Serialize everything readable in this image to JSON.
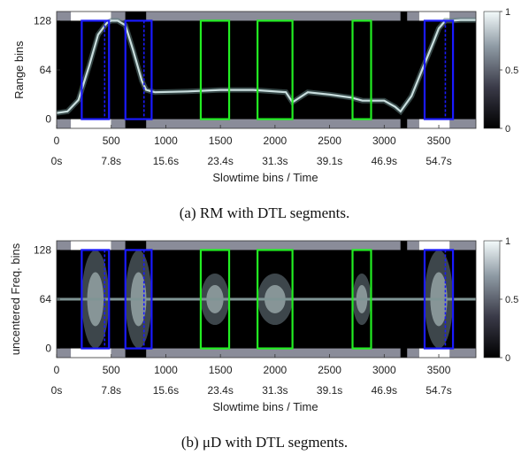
{
  "chart_data": [
    {
      "type": "heatmap",
      "caption": "(a) RM with DTL segments.",
      "xlabel": "Slowtime bins / Time",
      "ylabel": "Range bins",
      "xlim": [
        0,
        3840
      ],
      "ylim": [
        -12,
        140
      ],
      "x_ticks": [
        0,
        500,
        1000,
        1500,
        2000,
        2500,
        3000,
        3500
      ],
      "time_tick_labels": [
        "0s",
        "7.8s",
        "15.6s",
        "23.4s",
        "31.3s",
        "39.1s",
        "46.9s",
        "54.7s"
      ],
      "y_ticks": [
        0,
        64,
        128
      ],
      "colorbar": {
        "min": 0,
        "max": 1,
        "ticks": [
          0,
          0.5,
          1
        ]
      },
      "masks": [
        {
          "x0": 0,
          "x1": 130,
          "shade": "gray"
        },
        {
          "x0": 130,
          "x1": 500,
          "shade": "white"
        },
        {
          "x0": 500,
          "x1": 630,
          "shade": "gray"
        },
        {
          "x0": 630,
          "x1": 820,
          "shade": "black"
        },
        {
          "x0": 820,
          "x1": 3150,
          "shade": "gray"
        },
        {
          "x0": 3150,
          "x1": 3210,
          "shade": "black"
        },
        {
          "x0": 3210,
          "x1": 3320,
          "shade": "gray"
        },
        {
          "x0": 3320,
          "x1": 3600,
          "shade": "white"
        },
        {
          "x0": 3600,
          "x1": 3840,
          "shade": "gray"
        }
      ],
      "segments": [
        {
          "x0": 230,
          "x1": 480,
          "color": "blue",
          "dash_x": 440
        },
        {
          "x0": 630,
          "x1": 870,
          "color": "blue",
          "dash_x": 800
        },
        {
          "x0": 1320,
          "x1": 1580,
          "color": "green"
        },
        {
          "x0": 1840,
          "x1": 2160,
          "color": "green"
        },
        {
          "x0": 2710,
          "x1": 2880,
          "color": "green"
        },
        {
          "x0": 3370,
          "x1": 3630,
          "color": "blue",
          "dash_x": 3560
        }
      ],
      "trace": {
        "name": "range trace",
        "x": [
          0,
          100,
          200,
          300,
          380,
          460,
          500,
          560,
          630,
          700,
          780,
          820,
          900,
          1200,
          1500,
          1800,
          2100,
          2160,
          2300,
          2500,
          2700,
          2800,
          2900,
          3000,
          3100,
          3150,
          3250,
          3350,
          3450,
          3500,
          3560,
          3620,
          3700,
          3840
        ],
        "y": [
          8,
          10,
          25,
          70,
          110,
          125,
          128,
          128,
          122,
          90,
          50,
          38,
          35,
          36,
          38,
          38,
          35,
          22,
          35,
          32,
          28,
          24,
          24,
          24,
          16,
          10,
          30,
          65,
          100,
          118,
          128,
          128,
          129,
          129
        ]
      }
    },
    {
      "type": "heatmap",
      "caption": "(b) μD with DTL segments.",
      "xlabel": "Slowtime bins / Time",
      "ylabel": "uncentered Freq. bins",
      "xlim": [
        0,
        3840
      ],
      "ylim": [
        -12,
        140
      ],
      "x_ticks": [
        0,
        500,
        1000,
        1500,
        2000,
        2500,
        3000,
        3500
      ],
      "time_tick_labels": [
        "0s",
        "7.8s",
        "15.6s",
        "23.4s",
        "31.3s",
        "39.1s",
        "46.9s",
        "54.7s"
      ],
      "y_ticks": [
        0,
        64,
        128
      ],
      "colorbar": {
        "min": 0,
        "max": 1,
        "ticks": [
          0,
          0.5,
          1
        ]
      },
      "masks": [
        {
          "x0": 0,
          "x1": 130,
          "shade": "gray"
        },
        {
          "x0": 130,
          "x1": 500,
          "shade": "white"
        },
        {
          "x0": 500,
          "x1": 630,
          "shade": "gray"
        },
        {
          "x0": 630,
          "x1": 820,
          "shade": "black"
        },
        {
          "x0": 820,
          "x1": 3150,
          "shade": "gray"
        },
        {
          "x0": 3150,
          "x1": 3210,
          "shade": "black"
        },
        {
          "x0": 3210,
          "x1": 3320,
          "shade": "gray"
        },
        {
          "x0": 3320,
          "x1": 3600,
          "shade": "white"
        },
        {
          "x0": 3600,
          "x1": 3840,
          "shade": "gray"
        }
      ],
      "segments": [
        {
          "x0": 230,
          "x1": 480,
          "color": "blue",
          "dash_x": 440
        },
        {
          "x0": 630,
          "x1": 870,
          "color": "blue",
          "dash_x": 800
        },
        {
          "x0": 1320,
          "x1": 1580,
          "color": "green"
        },
        {
          "x0": 1840,
          "x1": 2160,
          "color": "green"
        },
        {
          "x0": 2710,
          "x1": 2880,
          "color": "green"
        },
        {
          "x0": 3370,
          "x1": 3630,
          "color": "blue",
          "dash_x": 3560
        }
      ],
      "trace": {
        "name": "zero-doppler line",
        "x": [
          0,
          3840
        ],
        "y": [
          64,
          64
        ]
      }
    }
  ],
  "colors": {
    "blue": "#1a1aff",
    "green": "#22ee22",
    "gray": "#8a8c99",
    "white": "#ffffff",
    "black": "#000000",
    "trace": "#c9dede"
  }
}
